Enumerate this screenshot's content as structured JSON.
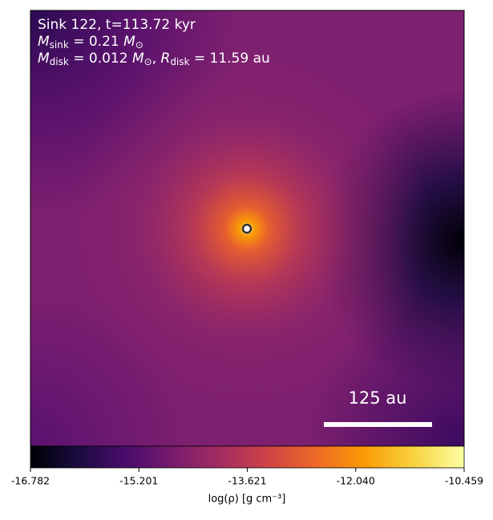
{
  "chart_data": {
    "type": "density_map",
    "annotations": [
      [
        {
          "text": "Sink 122, t=113.72 kyr"
        }
      ],
      [
        {
          "text": "M",
          "italic": true
        },
        {
          "text": "sink",
          "sub": true
        },
        {
          "text": " = 0.21 "
        },
        {
          "text": "M",
          "italic": true
        },
        {
          "text": "⊙",
          "sub": true
        }
      ],
      [
        {
          "text": "M",
          "italic": true
        },
        {
          "text": "disk",
          "sub": true
        },
        {
          "text": " = 0.012 "
        },
        {
          "text": "M",
          "italic": true
        },
        {
          "text": "⊙",
          "sub": true
        },
        {
          "text": ", "
        },
        {
          "text": "R",
          "italic": true
        },
        {
          "text": "disk",
          "sub": true
        },
        {
          "text": " = 11.59 au"
        }
      ]
    ],
    "scale_bar_label": "125 au",
    "colorbar": {
      "label": "log(ρ) [g cm⁻³]",
      "lim": [
        -16.782,
        -10.459
      ],
      "ticks": [
        -16.782,
        -15.201,
        -13.621,
        {
          "value": -12.04,
          "label": "-12.040"
        },
        -10.459
      ],
      "colormap": "inferno"
    }
  }
}
